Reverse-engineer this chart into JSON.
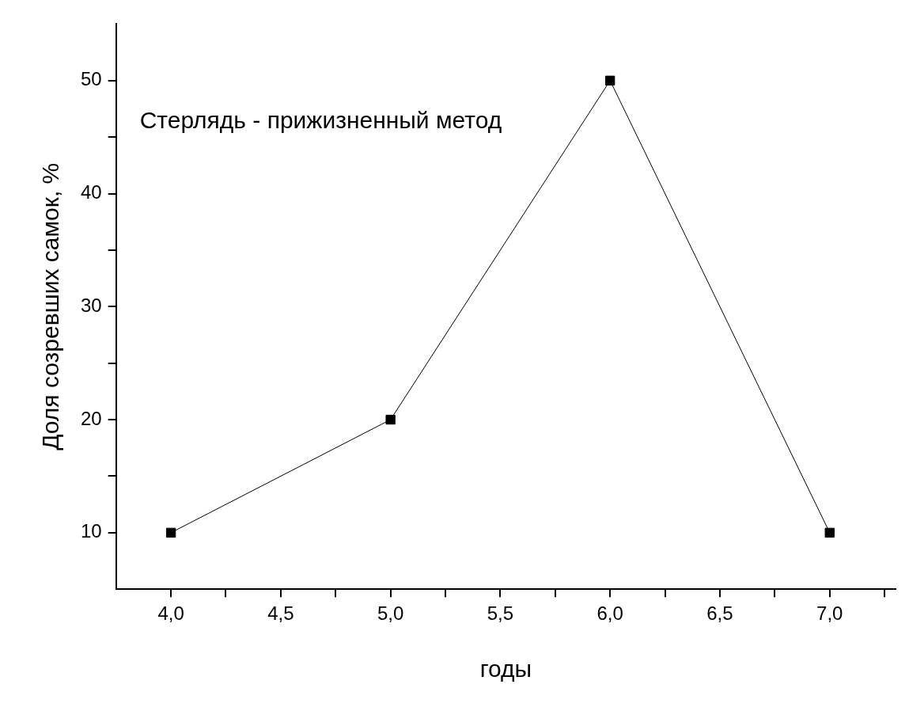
{
  "chart_data": {
    "type": "line",
    "xlabel": "годы",
    "ylabel": "Доля созревших самок, %",
    "annotations": [
      "Стерлядь - прижизненный метод"
    ],
    "x": [
      4,
      5,
      6,
      7
    ],
    "series": [
      {
        "color": "#000000",
        "values": [
          10,
          20,
          50,
          10
        ]
      }
    ],
    "xlim": [
      3.75,
      7.3
    ],
    "ylim": [
      5,
      55
    ],
    "xticks": [
      {
        "value": 4,
        "label": "4,0"
      },
      {
        "value": 4.25,
        "label": null
      },
      {
        "value": 4.5,
        "label": "4,5"
      },
      {
        "value": 4.75,
        "label": null
      },
      {
        "value": 5,
        "label": "5,0"
      },
      {
        "value": 5.25,
        "label": null
      },
      {
        "value": 5.5,
        "label": "5,5"
      },
      {
        "value": 5.75,
        "label": null
      },
      {
        "value": 6,
        "label": "6,0"
      },
      {
        "value": 6.25,
        "label": null
      },
      {
        "value": 6.5,
        "label": "6,5"
      },
      {
        "value": 6.75,
        "label": null
      },
      {
        "value": 7,
        "label": "7,0"
      },
      {
        "value": 7.25,
        "label": null
      }
    ],
    "yticks": [
      10,
      {
        "value": 15,
        "label": null
      },
      20,
      {
        "value": 25,
        "label": null
      },
      30,
      {
        "value": 35,
        "label": null
      },
      40,
      {
        "value": 45,
        "label": null
      },
      50
    ],
    "grid": false,
    "legend": false,
    "marker": "square",
    "line_style": "solid"
  }
}
